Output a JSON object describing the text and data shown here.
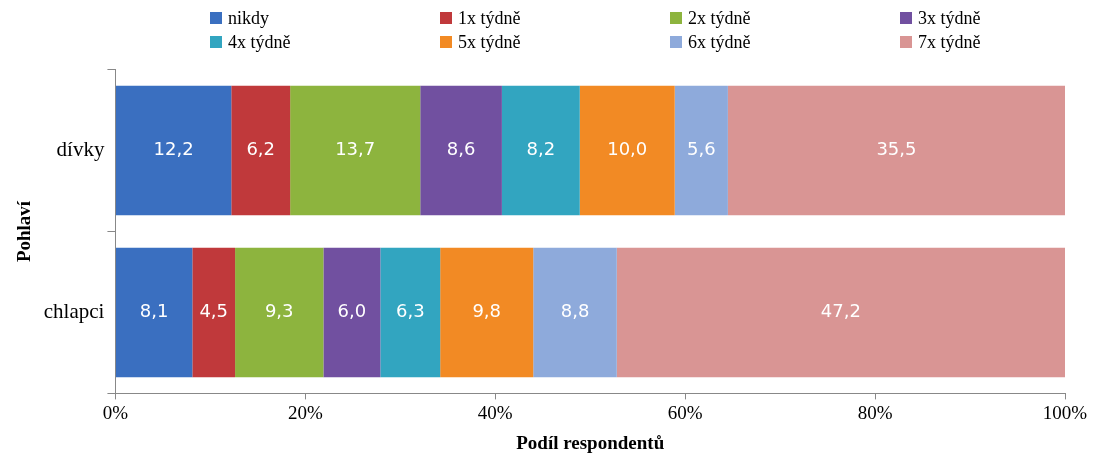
{
  "chart_data": {
    "type": "bar",
    "orientation": "horizontal",
    "stacked": true,
    "xlabel": "Podíl respondentů",
    "ylabel": "Pohlaví",
    "categories": [
      "dívky",
      "chlapci"
    ],
    "series": [
      {
        "name": "nikdy",
        "color": "#3a6fc0",
        "values": [
          12.2,
          8.1
        ],
        "value_labels": [
          "12,2",
          "8,1"
        ]
      },
      {
        "name": "1x týdně",
        "color": "#c0393b",
        "values": [
          6.2,
          4.5
        ],
        "value_labels": [
          "6,2",
          "4,5"
        ]
      },
      {
        "name": "2x týdně",
        "color": "#8db43e",
        "values": [
          13.7,
          9.3
        ],
        "value_labels": [
          "13,7",
          "9,3"
        ]
      },
      {
        "name": "3x týdně",
        "color": "#7150a0",
        "values": [
          8.6,
          6.0
        ],
        "value_labels": [
          "8,6",
          "6,0"
        ]
      },
      {
        "name": "4x týdně",
        "color": "#32a5c0",
        "values": [
          8.2,
          6.3
        ],
        "value_labels": [
          "8,2",
          "6,3"
        ]
      },
      {
        "name": "5x týdně",
        "color": "#f28a24",
        "values": [
          10.0,
          9.8
        ],
        "value_labels": [
          "10,0",
          "9,8"
        ]
      },
      {
        "name": "6x týdně",
        "color": "#8eaadb",
        "values": [
          5.6,
          8.8
        ],
        "value_labels": [
          "5,6",
          "8,8"
        ]
      },
      {
        "name": "7x týdně",
        "color": "#d99594",
        "values": [
          35.5,
          47.2
        ],
        "value_labels": [
          "35,5",
          "47,2"
        ]
      }
    ],
    "xlim": [
      0,
      100
    ],
    "xticks": [
      {
        "value": 0,
        "label": "0%"
      },
      {
        "value": 20,
        "label": "20%"
      },
      {
        "value": 40,
        "label": "40%"
      },
      {
        "value": 60,
        "label": "60%"
      },
      {
        "value": 80,
        "label": "80%"
      },
      {
        "value": 100,
        "label": "100%"
      }
    ],
    "grid": false,
    "legend": "top"
  }
}
